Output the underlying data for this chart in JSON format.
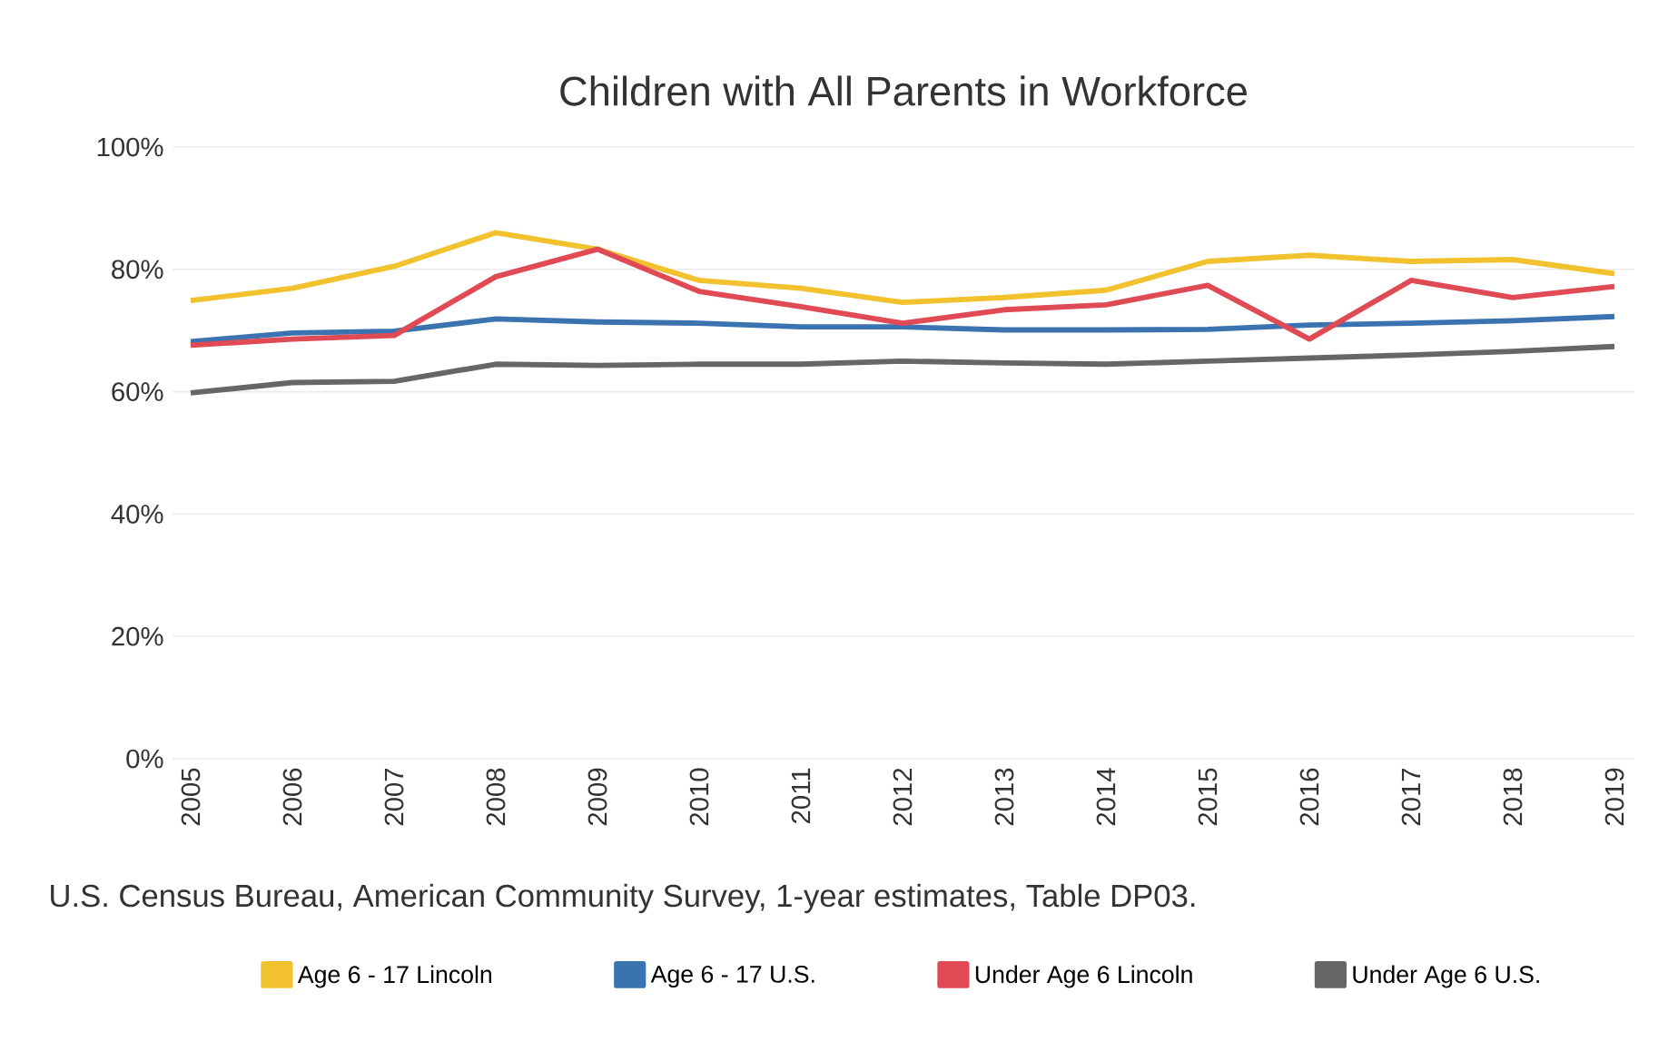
{
  "chart_data": {
    "type": "line",
    "title": "Children with All Parents in Workforce",
    "categories": [
      "2005",
      "2006",
      "2007",
      "2008",
      "2009",
      "2010",
      "2011",
      "2012",
      "2013",
      "2014",
      "2015",
      "2016",
      "2017",
      "2018",
      "2019"
    ],
    "series": [
      {
        "name": "Age 6 - 17 Lincoln",
        "color": "#f2c12e",
        "values": [
          74.9,
          76.9,
          80.5,
          86.0,
          83.3,
          78.2,
          76.9,
          74.6,
          75.4,
          76.6,
          81.3,
          82.3,
          81.3,
          81.6,
          79.3
        ]
      },
      {
        "name": "Age 6 - 17 U.S.",
        "color": "#3b73b0",
        "values": [
          68.2,
          69.6,
          69.9,
          71.9,
          71.4,
          71.2,
          70.6,
          70.6,
          70.1,
          70.1,
          70.2,
          70.9,
          71.2,
          71.6,
          72.3
        ]
      },
      {
        "name": "Under Age 6 Lincoln",
        "color": "#e04a55",
        "values": [
          67.6,
          68.6,
          69.2,
          78.8,
          83.3,
          76.4,
          73.9,
          71.2,
          73.4,
          74.2,
          77.4,
          68.6,
          78.2,
          75.4,
          77.2
        ]
      },
      {
        "name": "Under Age 6 U.S.",
        "color": "#666666",
        "values": [
          59.8,
          61.5,
          61.7,
          64.5,
          64.3,
          64.5,
          64.5,
          65.0,
          64.7,
          64.5,
          65.0,
          65.5,
          66.0,
          66.6,
          67.4
        ]
      }
    ],
    "ylim": [
      0,
      100
    ],
    "yticks": [
      {
        "value": 0,
        "label": "0%"
      },
      {
        "value": 20,
        "label": "20%"
      },
      {
        "value": 40,
        "label": "40%"
      },
      {
        "value": 60,
        "label": "60%"
      },
      {
        "value": 80,
        "label": "80%"
      },
      {
        "value": 100,
        "label": "100%"
      }
    ],
    "grid": "y",
    "legend": "bottom",
    "line_style": "solid",
    "annotations": [
      "U.S. Census Bureau, American Community Survey, 1-year estimates, Table DP03."
    ]
  }
}
